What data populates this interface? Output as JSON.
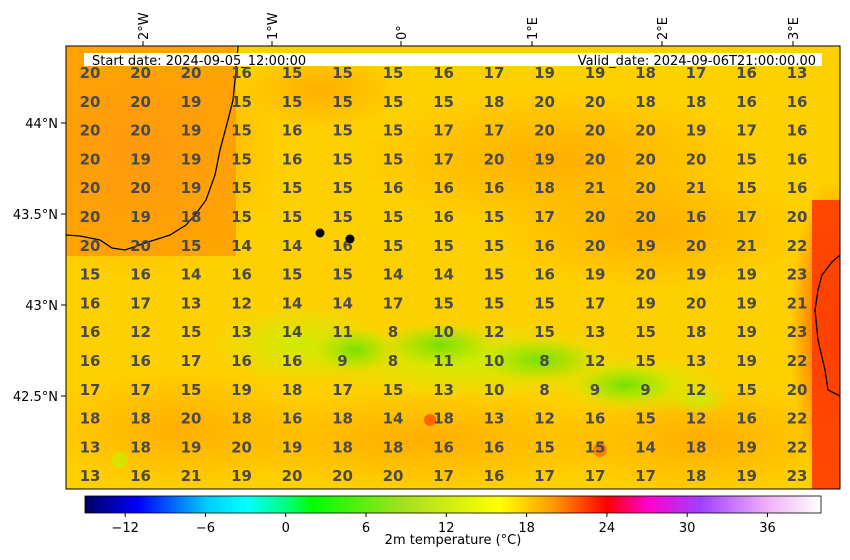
{
  "header": {
    "start_date": "Start date: 2024-09-05_12:00:00",
    "valid_date": "Valid_date: 2024-09-06T21:00:00.00"
  },
  "lon_ticks": [
    "2°W",
    "1°W",
    "0°",
    "1°E",
    "2°E",
    "3°E"
  ],
  "lat_ticks": [
    "44°N",
    "43.5°N",
    "43°N",
    "42.5°N"
  ],
  "grid_values": [
    [
      20,
      20,
      20,
      16,
      15,
      15,
      15,
      16,
      17,
      19,
      19,
      18,
      17,
      16,
      13
    ],
    [
      20,
      20,
      19,
      15,
      15,
      15,
      15,
      15,
      18,
      20,
      20,
      18,
      18,
      16,
      16
    ],
    [
      20,
      20,
      19,
      15,
      16,
      15,
      15,
      17,
      17,
      20,
      20,
      20,
      19,
      17,
      16
    ],
    [
      20,
      19,
      19,
      15,
      16,
      15,
      15,
      17,
      20,
      19,
      20,
      20,
      20,
      15,
      16
    ],
    [
      20,
      20,
      19,
      15,
      15,
      15,
      16,
      16,
      16,
      18,
      21,
      20,
      21,
      15,
      16
    ],
    [
      20,
      19,
      18,
      15,
      15,
      15,
      15,
      16,
      15,
      17,
      20,
      20,
      16,
      17,
      20
    ],
    [
      20,
      20,
      15,
      14,
      14,
      16,
      15,
      15,
      15,
      16,
      20,
      19,
      20,
      21,
      22
    ],
    [
      15,
      16,
      14,
      16,
      15,
      15,
      14,
      14,
      15,
      16,
      19,
      20,
      19,
      19,
      23
    ],
    [
      16,
      17,
      13,
      12,
      14,
      14,
      17,
      15,
      15,
      15,
      17,
      19,
      20,
      19,
      21
    ],
    [
      16,
      12,
      15,
      13,
      14,
      11,
      8,
      10,
      12,
      15,
      13,
      15,
      18,
      19,
      23
    ],
    [
      16,
      16,
      17,
      16,
      16,
      9,
      8,
      11,
      10,
      8,
      12,
      15,
      13,
      19,
      22
    ],
    [
      17,
      17,
      15,
      19,
      18,
      17,
      15,
      13,
      10,
      8,
      9,
      9,
      12,
      15,
      20
    ],
    [
      18,
      18,
      20,
      18,
      16,
      18,
      14,
      18,
      13,
      12,
      16,
      15,
      12,
      16,
      22
    ],
    [
      13,
      18,
      19,
      20,
      19,
      18,
      18,
      16,
      16,
      15,
      15,
      14,
      18,
      19,
      22
    ],
    [
      13,
      16,
      21,
      19,
      20,
      20,
      20,
      17,
      16,
      17,
      17,
      17,
      18,
      19,
      23
    ]
  ],
  "colorbar": {
    "label": "2m temperature ( $^\\circ$C)",
    "label_display": "2m temperature (°C)",
    "min": -15,
    "max": 40,
    "ticks": [
      "-12",
      "-6",
      "0",
      "6",
      "12",
      "18",
      "24",
      "30",
      "36"
    ],
    "tick_values": [
      -12,
      -6,
      0,
      6,
      12,
      18,
      24,
      30,
      36
    ],
    "stops": [
      {
        "v": -15,
        "c": "#000060"
      },
      {
        "v": -11,
        "c": "#0000ff"
      },
      {
        "v": -6,
        "c": "#00c8ff"
      },
      {
        "v": -3,
        "c": "#00ffff"
      },
      {
        "v": 0,
        "c": "#00ff80"
      },
      {
        "v": 2,
        "c": "#00ff00"
      },
      {
        "v": 9,
        "c": "#a8e020"
      },
      {
        "v": 16,
        "c": "#ffff00"
      },
      {
        "v": 20,
        "c": "#ff9900"
      },
      {
        "v": 24,
        "c": "#ff0000"
      },
      {
        "v": 27,
        "c": "#ff00cc"
      },
      {
        "v": 31,
        "c": "#a040ff"
      },
      {
        "v": 36,
        "c": "#f0b0f8"
      },
      {
        "v": 40,
        "c": "#ffffff"
      }
    ]
  },
  "markers": [
    "city-marker-1",
    "city-marker-2"
  ]
}
